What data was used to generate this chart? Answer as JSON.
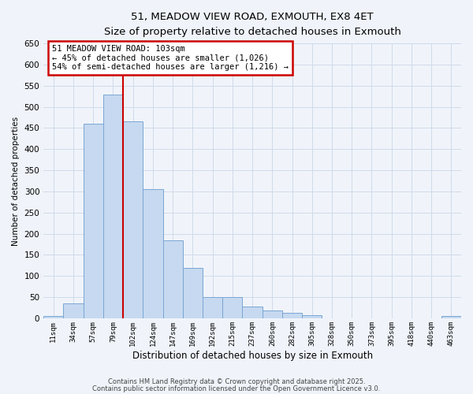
{
  "title": "51, MEADOW VIEW ROAD, EXMOUTH, EX8 4ET",
  "subtitle": "Size of property relative to detached houses in Exmouth",
  "xlabel": "Distribution of detached houses by size in Exmouth",
  "ylabel": "Number of detached properties",
  "bar_labels": [
    "11sqm",
    "34sqm",
    "57sqm",
    "79sqm",
    "102sqm",
    "124sqm",
    "147sqm",
    "169sqm",
    "192sqm",
    "215sqm",
    "237sqm",
    "260sqm",
    "282sqm",
    "305sqm",
    "328sqm",
    "350sqm",
    "373sqm",
    "395sqm",
    "418sqm",
    "440sqm",
    "463sqm"
  ],
  "bar_values": [
    5,
    35,
    460,
    530,
    465,
    305,
    185,
    120,
    50,
    50,
    27,
    18,
    13,
    8,
    0,
    0,
    0,
    0,
    0,
    0,
    5
  ],
  "bar_color": "#c6d9f0",
  "bar_edge_color": "#7aa6d4",
  "ylim": [
    0,
    650
  ],
  "yticks": [
    0,
    50,
    100,
    150,
    200,
    250,
    300,
    350,
    400,
    450,
    500,
    550,
    600,
    650
  ],
  "property_line_x": 4,
  "property_line_color": "#cc0000",
  "annotation_line1": "51 MEADOW VIEW ROAD: 103sqm",
  "annotation_line2": "← 45% of detached houses are smaller (1,026)",
  "annotation_line3": "54% of semi-detached houses are larger (1,216) →",
  "annotation_box_color": "#ffffff",
  "annotation_box_edge": "#cc0000",
  "footer_line1": "Contains HM Land Registry data © Crown copyright and database right 2025.",
  "footer_line2": "Contains public sector information licensed under the Open Government Licence v3.0.",
  "background_color": "#f0f4fa",
  "grid_color": "#d0daea"
}
